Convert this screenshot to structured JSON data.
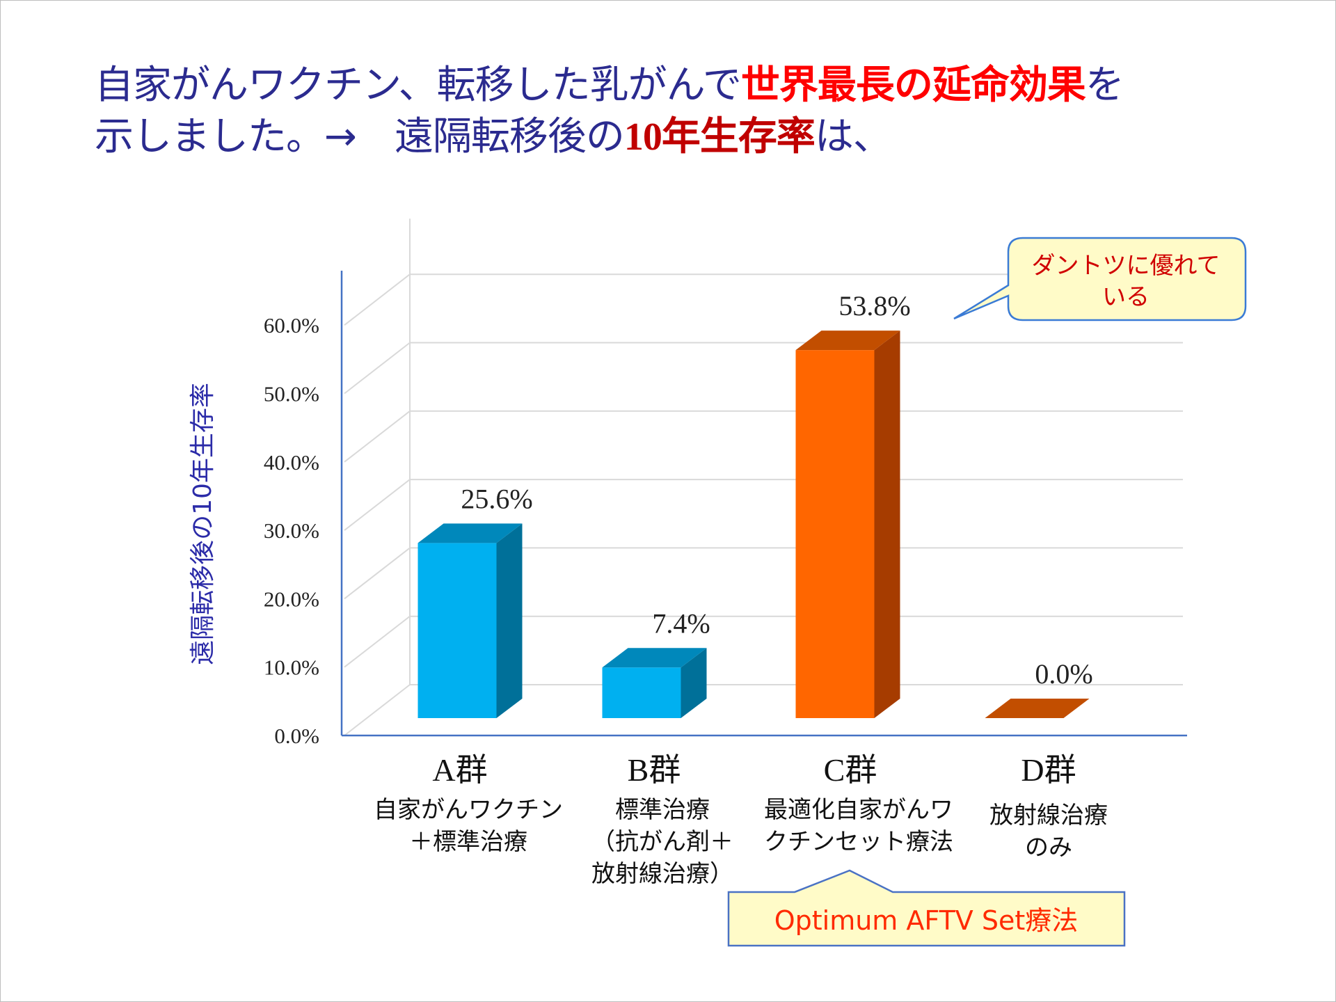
{
  "title": {
    "line1_a": "自家がんワクチン、転移した乳がんで",
    "line1_b": "世界最長の延命効果",
    "line1_c": "を",
    "line2_a": "示しました。→　遠隔転移後の",
    "line2_num": "10",
    "line2_b": "年生存率",
    "line2_c": "は、"
  },
  "colors": {
    "title": "#2b2b8f",
    "highlight": "#ff0000",
    "dark_highlight": "#c00000",
    "blue_bar": "#00b0f0",
    "orange_bar": "#ff6600"
  },
  "chart_data": {
    "type": "bar",
    "style": "3d-column",
    "ylabel": "遠隔転移後の10年生存率",
    "ylim": [
      0,
      60
    ],
    "yticks": [
      "0.0%",
      "10.0%",
      "20.0%",
      "30.0%",
      "40.0%",
      "50.0%",
      "60.0%"
    ],
    "grid": true,
    "categories": [
      "A群",
      "B群",
      "C群",
      "D群"
    ],
    "descriptions": [
      [
        "自家がんワクチン",
        "＋標準治療"
      ],
      [
        "標準治療",
        "（抗がん剤＋",
        "放射線治療）"
      ],
      [
        "最適化自家がんワ",
        "クチンセット療法"
      ],
      [
        "放射線治療",
        "のみ"
      ]
    ],
    "values": [
      25.6,
      7.4,
      53.8,
      0.0
    ],
    "data_labels": [
      "25.6%",
      "7.4%",
      "53.8%",
      "0.0%"
    ],
    "bar_colors": [
      "#00b0f0",
      "#00b0f0",
      "#ff6600",
      "#ff6600"
    ]
  },
  "callouts": {
    "top_right": [
      "ダントツに優れて",
      "いる"
    ],
    "bottom": "Optimum AFTV Set療法"
  }
}
